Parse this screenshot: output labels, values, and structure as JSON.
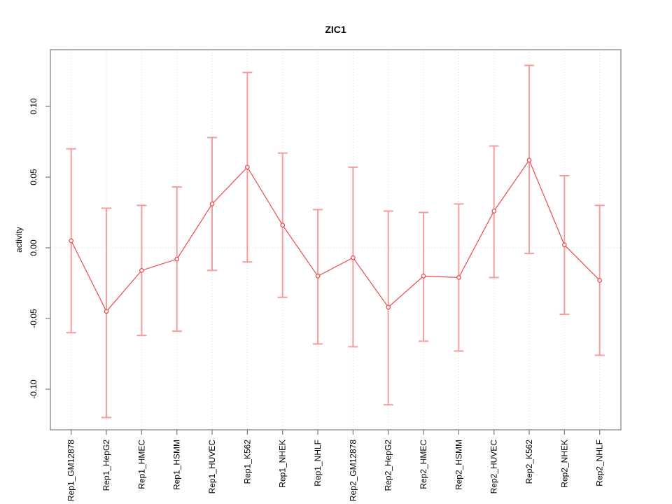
{
  "chart": {
    "title": "ZIC1",
    "ylabel": "activity",
    "xlabel": ""
  },
  "chart_data": {
    "type": "line",
    "title": "ZIC1",
    "xlabel": "",
    "ylabel": "activity",
    "legend_position": "none",
    "point_style": "open-circle",
    "grid": {
      "vertical_dotted_per_category": true,
      "horizontal_dotted_zero_line": true
    },
    "categories": [
      "Rep1_GM12878",
      "Rep1_HepG2",
      "Rep1_HMEC",
      "Rep1_HSMM",
      "Rep1_HUVEC",
      "Rep1_K562",
      "Rep1_NHEK",
      "Rep1_NHLF",
      "Rep2_GM12878",
      "Rep2_HepG2",
      "Rep2_HMEC",
      "Rep2_HSMM",
      "Rep2_HUVEC",
      "Rep2_K562",
      "Rep2_NHEK",
      "Rep2_NHLF"
    ],
    "series": [
      {
        "name": "activity",
        "values": [
          0.005,
          -0.045,
          -0.016,
          -0.008,
          0.031,
          0.057,
          0.016,
          -0.02,
          -0.007,
          -0.042,
          -0.02,
          -0.021,
          0.026,
          0.062,
          0.002,
          -0.023
        ],
        "error_high": [
          0.07,
          0.028,
          0.03,
          0.043,
          0.078,
          0.124,
          0.067,
          0.027,
          0.057,
          0.026,
          0.025,
          0.031,
          0.072,
          0.129,
          0.051,
          0.03
        ],
        "error_low": [
          -0.06,
          -0.12,
          -0.062,
          -0.059,
          -0.016,
          -0.01,
          -0.035,
          -0.068,
          -0.07,
          -0.111,
          -0.066,
          -0.073,
          -0.021,
          -0.004,
          -0.047,
          -0.076
        ]
      }
    ],
    "yticks": [
      -0.1,
      -0.05,
      0.0,
      0.05,
      0.1
    ],
    "ytick_labels": [
      "-0.10",
      "-0.05",
      "0.00",
      "0.05",
      "0.10"
    ],
    "ylim": [
      -0.1287,
      0.1401
    ],
    "zero_line_y": 0,
    "colors": {
      "series_line": "#f04a4a",
      "point_stroke": "#ee4343",
      "error_bar": "#f59c9c",
      "gridline": "#d9d9d9",
      "axis_box": "#7d7d7d",
      "text": "#000000"
    }
  }
}
